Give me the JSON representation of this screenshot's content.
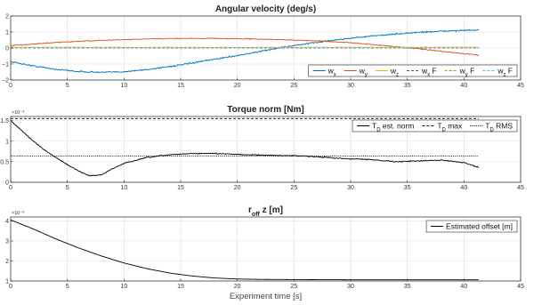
{
  "chart_data": [
    {
      "type": "line",
      "title": "Angular velocity (deg/s)",
      "xlabel": "",
      "ylabel": "",
      "xlim": [
        0,
        45
      ],
      "ylim": [
        -2,
        2
      ],
      "xticks": [
        0,
        5,
        10,
        15,
        20,
        25,
        30,
        35,
        40,
        45
      ],
      "yticks": [
        -2,
        -1,
        0,
        1,
        2
      ],
      "grid": true,
      "legend_position": "bottom-right",
      "legend": [
        "w_x",
        "w_y",
        "w_z",
        "w_x F",
        "w_y F",
        "w_z F"
      ],
      "series": [
        {
          "name": "w_x",
          "color": "#0072BD",
          "style": "solid",
          "noise": 0.045,
          "x": [
            0,
            2,
            4,
            6,
            8,
            10,
            12,
            15,
            18,
            21,
            24,
            27,
            30,
            33,
            36,
            39,
            41.3
          ],
          "y": [
            -0.85,
            -1.12,
            -1.33,
            -1.47,
            -1.52,
            -1.48,
            -1.35,
            -1.06,
            -0.7,
            -0.35,
            0.05,
            0.35,
            0.62,
            0.82,
            0.98,
            1.08,
            1.12
          ]
        },
        {
          "name": "w_y",
          "color": "#D95319",
          "style": "solid",
          "noise": 0.03,
          "x": [
            0,
            3,
            6,
            9,
            12,
            15,
            18,
            21,
            24,
            27,
            30,
            33,
            36,
            39,
            41.3
          ],
          "y": [
            0.15,
            0.3,
            0.42,
            0.5,
            0.56,
            0.6,
            0.6,
            0.57,
            0.52,
            0.45,
            0.33,
            0.15,
            -0.05,
            -0.28,
            -0.45
          ]
        },
        {
          "name": "w_z",
          "color": "#EDB120",
          "style": "solid",
          "noise": 0.015,
          "x": [
            0,
            10,
            20,
            30,
            41.3
          ],
          "y": [
            0.05,
            0.04,
            0.04,
            0.04,
            0.05
          ]
        },
        {
          "name": "w_x F",
          "color": "#7E2F8E",
          "style": "dashed",
          "noise": 0,
          "x": [
            0,
            41.3
          ],
          "y": [
            0.0,
            0.0
          ]
        },
        {
          "name": "w_y F",
          "color": "#77AC30",
          "style": "dashed",
          "noise": 0,
          "x": [
            0,
            41.3
          ],
          "y": [
            0.02,
            0.02
          ]
        },
        {
          "name": "w_z F",
          "color": "#4DBEEE",
          "style": "dashed",
          "noise": 0,
          "x": [
            0,
            41.3
          ],
          "y": [
            0.01,
            0.01
          ]
        }
      ]
    },
    {
      "type": "line",
      "title": "Torque norm [Nm]",
      "xlabel": "",
      "ylabel": "",
      "xlim": [
        0,
        45
      ],
      "ylim": [
        0,
        1.6
      ],
      "yscale_multiplier": "×10⁻⁴",
      "xticks": [
        0,
        5,
        10,
        15,
        20,
        25,
        30,
        35,
        40,
        45
      ],
      "yticks": [
        0,
        0.5,
        1,
        1.5
      ],
      "grid": true,
      "legend_position": "top-right",
      "legend": [
        "T_D est. norm",
        "T_D max",
        "T_D RMS"
      ],
      "series": [
        {
          "name": "T_D est. norm",
          "color": "#000000",
          "style": "solid",
          "noise": 0.012,
          "x": [
            0,
            1,
            2,
            3,
            4,
            5,
            6,
            7,
            8,
            9,
            10,
            12,
            14,
            16,
            18,
            20,
            22,
            24,
            26,
            28,
            30,
            32,
            34,
            36,
            38,
            40,
            41.3
          ],
          "y": [
            1.5,
            1.25,
            1.0,
            0.78,
            0.6,
            0.43,
            0.27,
            0.16,
            0.18,
            0.33,
            0.46,
            0.6,
            0.67,
            0.7,
            0.7,
            0.68,
            0.66,
            0.65,
            0.64,
            0.6,
            0.57,
            0.55,
            0.5,
            0.52,
            0.54,
            0.48,
            0.36
          ]
        },
        {
          "name": "T_D max",
          "color": "#000000",
          "style": "dashed",
          "noise": 0,
          "x": [
            0,
            41.3
          ],
          "y": [
            1.55,
            1.55
          ]
        },
        {
          "name": "T_D RMS",
          "color": "#000000",
          "style": "dotted",
          "noise": 0,
          "x": [
            0,
            41.3
          ],
          "y": [
            0.64,
            0.64
          ]
        }
      ]
    },
    {
      "type": "line",
      "title": "r_off z [m]",
      "xlabel": "Experiment time [s]",
      "ylabel": "",
      "xlim": [
        0,
        45
      ],
      "ylim": [
        1,
        4.2
      ],
      "yscale_multiplier": "×10⁻⁶",
      "xticks": [
        0,
        5,
        10,
        15,
        20,
        25,
        30,
        35,
        40,
        45
      ],
      "yticks": [
        1,
        2,
        3,
        4
      ],
      "grid": true,
      "legend_position": "top-right",
      "legend": [
        "Estimated offset [m]"
      ],
      "series": [
        {
          "name": "Estimated offset [m]",
          "color": "#000000",
          "style": "solid",
          "noise": 0,
          "x": [
            0,
            2,
            4,
            6,
            8,
            10,
            12,
            14,
            16,
            18,
            20,
            22,
            25,
            30,
            35,
            41.3
          ],
          "y": [
            4.05,
            3.6,
            3.1,
            2.65,
            2.25,
            1.9,
            1.62,
            1.4,
            1.25,
            1.15,
            1.1,
            1.08,
            1.07,
            1.06,
            1.06,
            1.06
          ]
        }
      ]
    }
  ]
}
